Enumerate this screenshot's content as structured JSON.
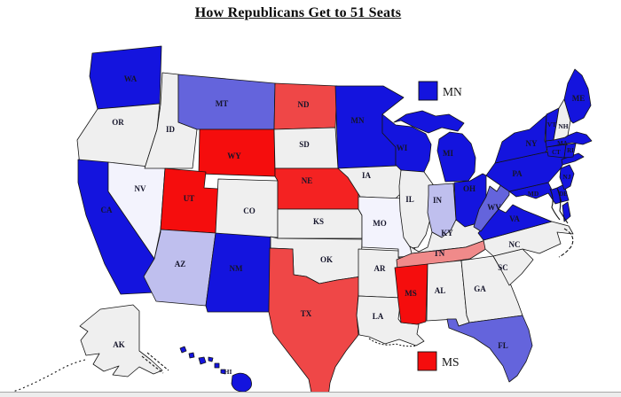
{
  "title": "How Republicans Get to 51 Seats",
  "colors": {
    "strong_blue": "#1414DE",
    "medium_blue": "#6464DC",
    "light_blue": "#BFBFEE",
    "pale_blue": "#F3F3FD",
    "neutral_gray": "#EFEFEF",
    "strong_red": "#F50D0D",
    "bright_red": "#F42222",
    "medium_red": "#EF4747",
    "pink": "#F08A8A",
    "border": "#141414"
  },
  "legend": {
    "top": {
      "label": "MN",
      "color_key": "strong_blue"
    },
    "bottom": {
      "label": "MS",
      "color_key": "strong_red"
    }
  },
  "map": {
    "states": [
      {
        "abbr": "WA",
        "color": "strong_blue"
      },
      {
        "abbr": "OR",
        "color": "neutral_gray"
      },
      {
        "abbr": "CA",
        "color": "strong_blue"
      },
      {
        "abbr": "NV",
        "color": "pale_blue"
      },
      {
        "abbr": "ID",
        "color": "neutral_gray"
      },
      {
        "abbr": "MT",
        "color": "medium_blue"
      },
      {
        "abbr": "WY",
        "color": "strong_red"
      },
      {
        "abbr": "UT",
        "color": "strong_red"
      },
      {
        "abbr": "AZ",
        "color": "light_blue"
      },
      {
        "abbr": "NM",
        "color": "strong_blue"
      },
      {
        "abbr": "CO",
        "color": "neutral_gray"
      },
      {
        "abbr": "ND",
        "color": "medium_red"
      },
      {
        "abbr": "SD",
        "color": "neutral_gray"
      },
      {
        "abbr": "NE",
        "color": "bright_red"
      },
      {
        "abbr": "KS",
        "color": "neutral_gray"
      },
      {
        "abbr": "OK",
        "color": "neutral_gray"
      },
      {
        "abbr": "TX",
        "color": "medium_red"
      },
      {
        "abbr": "MN",
        "color": "strong_blue"
      },
      {
        "abbr": "IA",
        "color": "neutral_gray"
      },
      {
        "abbr": "MO",
        "color": "pale_blue"
      },
      {
        "abbr": "AR",
        "color": "neutral_gray"
      },
      {
        "abbr": "LA",
        "color": "neutral_gray"
      },
      {
        "abbr": "WI",
        "color": "strong_blue"
      },
      {
        "abbr": "IL",
        "color": "neutral_gray"
      },
      {
        "abbr": "MI",
        "color": "strong_blue"
      },
      {
        "abbr": "IN",
        "color": "light_blue"
      },
      {
        "abbr": "OH",
        "color": "strong_blue"
      },
      {
        "abbr": "KY",
        "color": "neutral_gray"
      },
      {
        "abbr": "TN",
        "color": "pink"
      },
      {
        "abbr": "MS",
        "color": "strong_red"
      },
      {
        "abbr": "AL",
        "color": "neutral_gray"
      },
      {
        "abbr": "GA",
        "color": "neutral_gray"
      },
      {
        "abbr": "FL",
        "color": "medium_blue"
      },
      {
        "abbr": "SC",
        "color": "neutral_gray"
      },
      {
        "abbr": "NC",
        "color": "neutral_gray"
      },
      {
        "abbr": "VA",
        "color": "strong_blue"
      },
      {
        "abbr": "WV",
        "color": "medium_blue"
      },
      {
        "abbr": "MD",
        "color": "strong_blue"
      },
      {
        "abbr": "DE",
        "color": "strong_blue"
      },
      {
        "abbr": "NJ",
        "color": "strong_blue"
      },
      {
        "abbr": "PA",
        "color": "strong_blue"
      },
      {
        "abbr": "NY",
        "color": "strong_blue"
      },
      {
        "abbr": "CT",
        "color": "strong_blue"
      },
      {
        "abbr": "RI",
        "color": "strong_blue"
      },
      {
        "abbr": "MA",
        "color": "strong_blue"
      },
      {
        "abbr": "VT",
        "color": "strong_blue"
      },
      {
        "abbr": "NH",
        "color": "neutral_gray"
      },
      {
        "abbr": "ME",
        "color": "strong_blue"
      },
      {
        "abbr": "AK",
        "color": "neutral_gray"
      },
      {
        "abbr": "HI",
        "color": "strong_blue"
      }
    ]
  }
}
